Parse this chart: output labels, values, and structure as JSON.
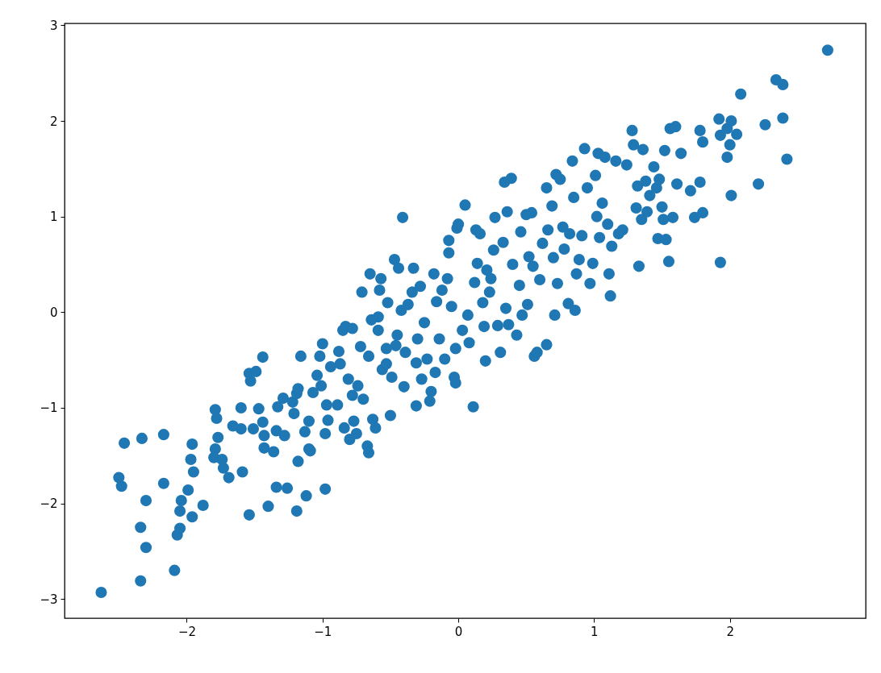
{
  "chart_data": {
    "type": "scatter",
    "marker": "circle",
    "grid": false,
    "xlim": [
      -2.9,
      3.0
    ],
    "ylim": [
      -3.2,
      3.02
    ],
    "xticks": [
      {
        "value": -2,
        "label": "−2"
      },
      {
        "value": -1,
        "label": "−1"
      },
      0,
      1,
      2
    ],
    "yticks": [
      {
        "value": -3,
        "label": "−3"
      },
      {
        "value": -2,
        "label": "−2"
      },
      {
        "value": -1,
        "label": "−1"
      },
      0,
      1,
      2,
      3
    ],
    "series": [
      {
        "color": "#1f77b4",
        "x": [
          -2.63,
          -2.34,
          -2.09,
          -2.3,
          -2.34,
          -2.07,
          -2.05,
          -2.5,
          -2.48,
          -2.3,
          -2.46,
          -2.33,
          -2.17,
          -2.17,
          -1.99,
          -2.04,
          -2.05,
          -1.96,
          -1.88,
          -1.97,
          -1.95,
          -1.96,
          -1.79,
          -1.78,
          -1.77,
          -1.79,
          -1.8,
          -1.74,
          -1.73,
          -1.69,
          -1.66,
          -1.6,
          -1.6,
          -1.59,
          -1.54,
          -1.54,
          -1.49,
          -1.53,
          -1.51,
          -1.47,
          -1.44,
          -1.43,
          -1.43,
          -1.44,
          -1.4,
          -1.36,
          -1.33,
          -1.34,
          -1.34,
          -1.29,
          -1.28,
          -1.26,
          -1.22,
          -1.21,
          -1.19,
          -1.18,
          -1.18,
          -1.19,
          -1.16,
          -1.13,
          -1.12,
          -1.1,
          -1.1,
          -1.09,
          -1.07,
          -1.04,
          -1.02,
          -1.01,
          -1.0,
          -0.98,
          -0.98,
          -0.96,
          -0.97,
          -0.94,
          -0.89,
          -0.88,
          -0.87,
          -0.85,
          -0.84,
          -0.83,
          -0.81,
          -0.8,
          -0.78,
          -0.78,
          -0.77,
          -0.75,
          -0.74,
          -0.72,
          -0.71,
          -0.7,
          -0.67,
          -0.66,
          -0.66,
          -0.65,
          -0.64,
          -0.63,
          -0.61,
          -0.59,
          -0.59,
          -0.58,
          -0.57,
          -0.56,
          -0.53,
          -0.53,
          -0.52,
          -0.5,
          -0.49,
          -0.47,
          -0.46,
          -0.45,
          -0.44,
          -0.42,
          -0.41,
          -0.4,
          -0.39,
          -0.37,
          -0.34,
          -0.33,
          -0.31,
          -0.31,
          -0.3,
          -0.28,
          -0.27,
          -0.25,
          -0.23,
          -0.21,
          -0.2,
          -0.18,
          -0.17,
          -0.16,
          -0.14,
          -0.12,
          -0.1,
          -0.08,
          -0.05,
          -0.03,
          -0.02,
          -0.02,
          -0.01,
          0.0,
          -0.07,
          -0.07,
          0.03,
          0.05,
          0.07,
          0.08,
          0.11,
          0.12,
          0.13,
          0.14,
          0.16,
          0.18,
          0.19,
          0.2,
          0.21,
          0.23,
          0.24,
          0.26,
          0.27,
          0.29,
          0.31,
          0.33,
          0.34,
          0.35,
          0.36,
          0.37,
          0.39,
          0.4,
          0.43,
          0.45,
          0.46,
          0.47,
          0.5,
          0.51,
          0.52,
          0.54,
          0.55,
          0.56,
          0.58,
          0.6,
          0.62,
          0.65,
          0.65,
          0.66,
          0.69,
          0.7,
          0.71,
          0.72,
          0.73,
          0.75,
          0.77,
          0.78,
          0.81,
          0.82,
          0.84,
          0.85,
          0.86,
          0.87,
          0.89,
          0.91,
          0.93,
          0.95,
          0.97,
          0.99,
          1.01,
          1.02,
          1.03,
          1.04,
          1.06,
          1.08,
          1.1,
          1.11,
          1.12,
          1.13,
          1.16,
          1.18,
          1.21,
          1.24,
          1.28,
          1.29,
          1.31,
          1.32,
          1.33,
          1.35,
          1.36,
          1.38,
          1.39,
          1.41,
          1.44,
          1.46,
          1.48,
          1.5,
          1.47,
          1.53,
          1.51,
          1.52,
          1.55,
          1.56,
          1.58,
          1.6,
          1.61,
          1.64,
          1.71,
          1.74,
          1.78,
          1.78,
          1.8,
          1.8,
          1.92,
          1.93,
          1.93,
          1.98,
          1.98,
          2.0,
          2.01,
          2.01,
          2.05,
          2.08,
          2.21,
          2.26,
          2.34,
          2.39,
          2.39,
          2.42,
          2.72
        ],
        "values": [
          -2.93,
          -2.81,
          -2.7,
          -2.46,
          -2.25,
          -2.33,
          -2.26,
          -1.73,
          -1.82,
          -1.97,
          -1.37,
          -1.32,
          -1.28,
          -1.79,
          -1.86,
          -1.97,
          -2.08,
          -2.14,
          -2.02,
          -1.54,
          -1.67,
          -1.38,
          -1.02,
          -1.11,
          -1.31,
          -1.43,
          -1.52,
          -1.54,
          -1.63,
          -1.73,
          -1.19,
          -1.22,
          -1.0,
          -1.67,
          -2.12,
          -0.64,
          -0.62,
          -0.72,
          -1.22,
          -1.01,
          -1.15,
          -1.29,
          -1.42,
          -0.47,
          -2.03,
          -1.46,
          -0.99,
          -1.24,
          -1.83,
          -0.9,
          -1.29,
          -1.84,
          -0.94,
          -1.06,
          -0.85,
          -0.8,
          -1.56,
          -2.08,
          -0.46,
          -1.25,
          -1.92,
          -1.14,
          -1.43,
          -1.45,
          -0.84,
          -0.66,
          -0.46,
          -0.77,
          -0.33,
          -1.85,
          -1.27,
          -1.13,
          -0.97,
          -0.57,
          -0.97,
          -0.41,
          -0.54,
          -0.19,
          -1.21,
          -0.15,
          -0.7,
          -1.33,
          -0.17,
          -0.87,
          -1.14,
          -1.27,
          -0.77,
          -0.36,
          0.21,
          -0.91,
          -1.4,
          -1.47,
          -0.46,
          0.4,
          -0.08,
          -1.12,
          -1.21,
          -0.05,
          -0.19,
          0.23,
          0.35,
          -0.6,
          -0.54,
          -0.38,
          0.1,
          -1.08,
          -0.68,
          0.55,
          -0.35,
          -0.24,
          0.46,
          0.02,
          0.99,
          -0.78,
          -0.42,
          0.08,
          0.21,
          0.46,
          -0.53,
          -0.98,
          -0.28,
          0.27,
          -0.7,
          -0.11,
          -0.49,
          -0.93,
          -0.83,
          0.4,
          -0.63,
          0.11,
          -0.28,
          0.23,
          -0.49,
          0.35,
          0.06,
          -0.68,
          -0.74,
          -0.38,
          0.88,
          0.92,
          0.75,
          0.62,
          -0.19,
          1.12,
          -0.03,
          -0.32,
          -0.99,
          0.31,
          0.86,
          0.51,
          0.82,
          0.1,
          -0.15,
          -0.51,
          0.44,
          0.21,
          0.35,
          0.65,
          0.99,
          -0.14,
          -0.42,
          0.73,
          1.36,
          0.04,
          1.05,
          -0.13,
          1.4,
          0.5,
          -0.24,
          0.28,
          0.84,
          -0.03,
          1.02,
          0.08,
          0.58,
          1.04,
          0.48,
          -0.46,
          -0.42,
          0.34,
          0.72,
          -0.34,
          1.3,
          0.86,
          1.11,
          0.57,
          -0.03,
          1.44,
          0.3,
          1.39,
          0.89,
          0.66,
          0.09,
          0.82,
          1.58,
          1.2,
          0.02,
          0.4,
          0.55,
          0.8,
          1.71,
          1.3,
          0.3,
          0.51,
          1.43,
          1.0,
          1.66,
          0.78,
          1.14,
          1.62,
          0.92,
          0.4,
          0.17,
          0.69,
          1.58,
          0.82,
          0.86,
          1.54,
          1.9,
          1.75,
          1.09,
          1.32,
          0.48,
          0.97,
          1.7,
          1.37,
          1.05,
          1.22,
          1.52,
          1.3,
          1.39,
          1.1,
          0.77,
          0.76,
          0.97,
          1.69,
          0.53,
          1.92,
          0.99,
          1.94,
          1.34,
          1.66,
          1.27,
          0.99,
          1.36,
          1.9,
          1.04,
          1.78,
          2.02,
          1.85,
          0.52,
          1.92,
          1.62,
          1.75,
          1.22,
          2.0,
          1.86,
          2.28,
          1.34,
          1.96,
          2.43,
          2.38,
          2.03,
          1.6,
          2.74
        ]
      }
    ]
  }
}
